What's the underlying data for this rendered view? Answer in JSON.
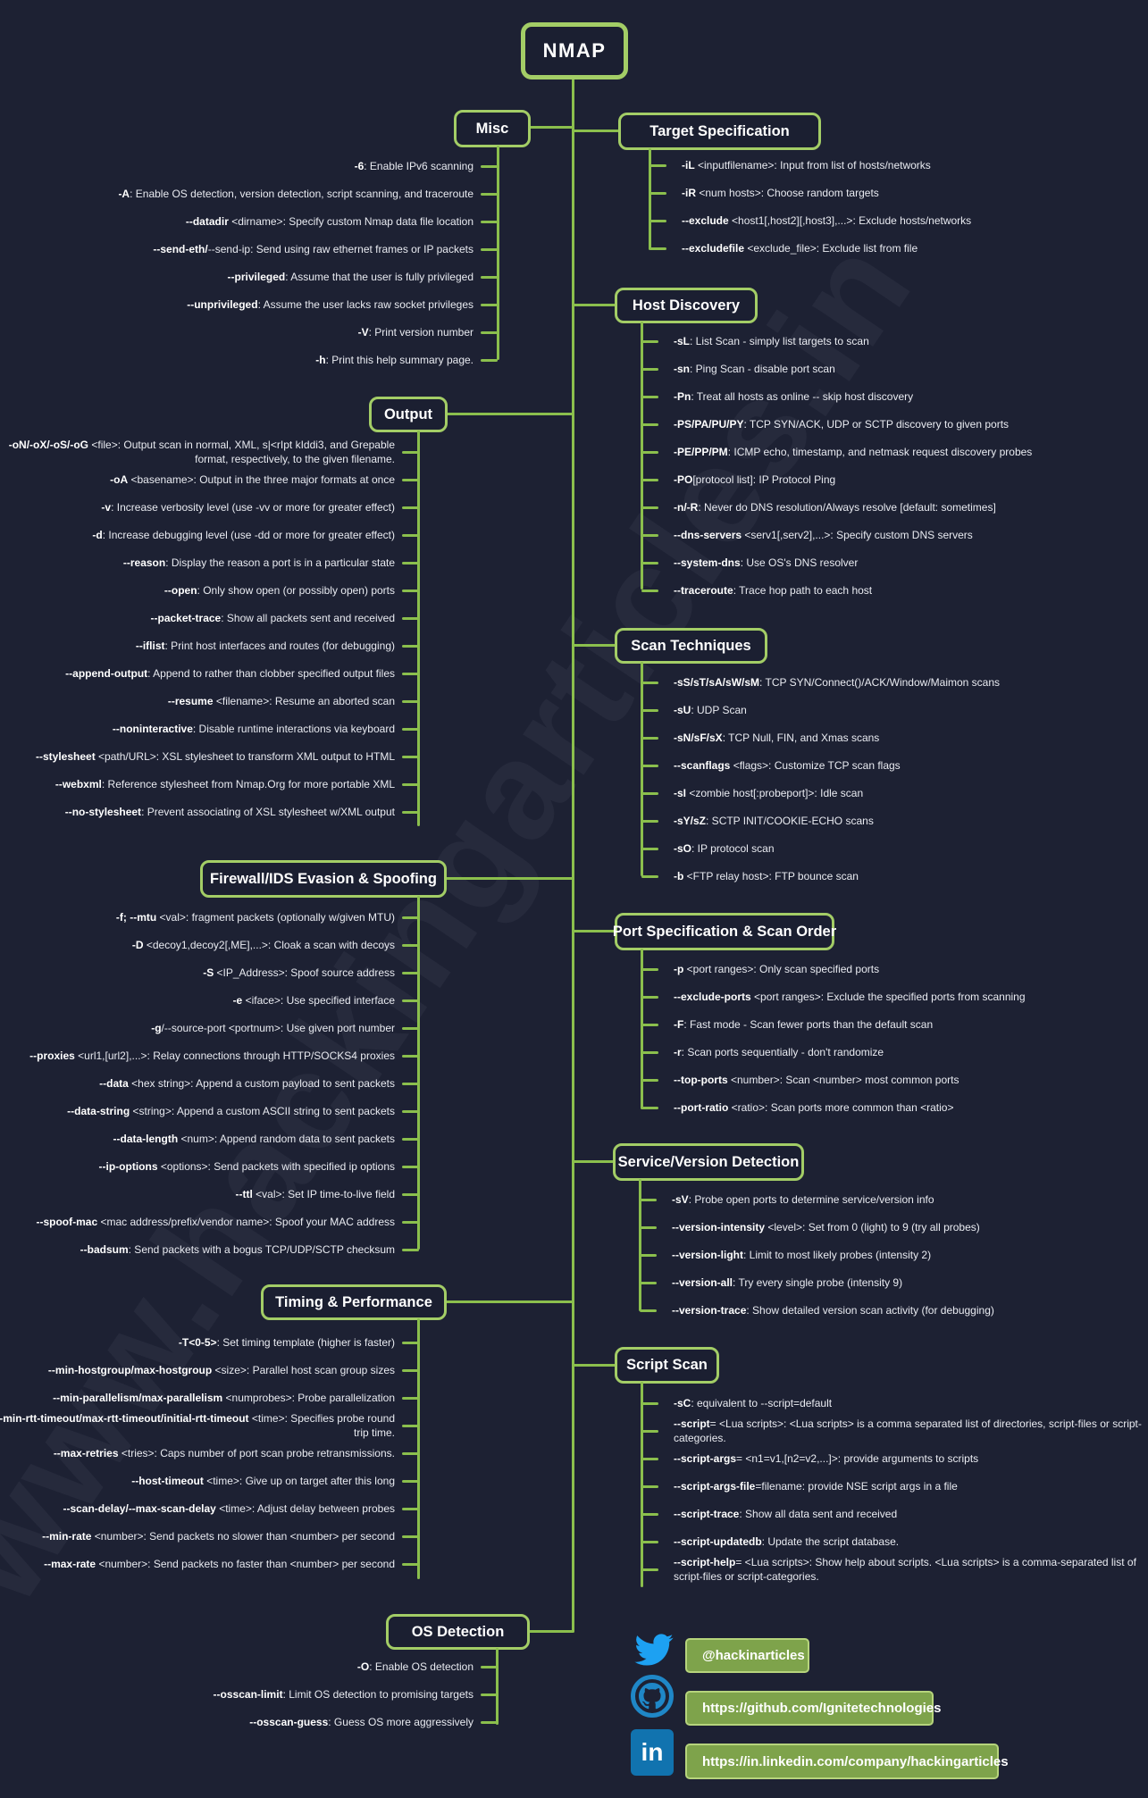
{
  "root": {
    "title": "NMAP"
  },
  "watermark": "www.hackingarticles.in",
  "colors": {
    "background": "#1d2133",
    "line_green": "#8bbf4d",
    "box_border_green": "#a3cd66",
    "badge_fill": "#7ea34b",
    "badge_border": "#b6d47c",
    "text": "#e9ebf1",
    "twitter_blue": "#1da1f2",
    "github_blue": "#1f87c7",
    "linkedin_blue": "#1173af"
  },
  "sections": [
    {
      "id": "misc",
      "title": "Misc",
      "side": "left",
      "items": [
        {
          "cmd": "-6",
          "desc": ": Enable IPv6 scanning"
        },
        {
          "cmd": "-A",
          "desc": ": Enable OS detection, version detection, script scanning, and traceroute"
        },
        {
          "cmd": "--datadir",
          "desc": " <dirname>: Specify custom Nmap data file location"
        },
        {
          "cmd": "--send-eth/",
          "desc": "--send-ip: Send using raw ethernet frames or IP packets"
        },
        {
          "cmd": "--privileged",
          "desc": ": Assume that the user is fully privileged"
        },
        {
          "cmd": "--unprivileged",
          "desc": ": Assume the user lacks raw socket privileges"
        },
        {
          "cmd": "-V",
          "desc": ": Print version number"
        },
        {
          "cmd": "-h",
          "desc": ": Print this help summary page."
        }
      ]
    },
    {
      "id": "output",
      "title": "Output",
      "side": "left",
      "items": [
        {
          "cmd": "-oN/-oX/-oS/-oG",
          "desc": " <file>: Output scan in normal, XML, s|<rIpt kIddi3, and Grepable format, respectively, to the given filename."
        },
        {
          "cmd": "-oA",
          "desc": " <basename>: Output in the three major formats at once"
        },
        {
          "cmd": "-v",
          "desc": ": Increase verbosity level (use -vv or more for greater effect)"
        },
        {
          "cmd": "-d",
          "desc": ": Increase debugging level (use -dd or more for greater effect)"
        },
        {
          "cmd": "--reason",
          "desc": ": Display the reason a port is in a particular state"
        },
        {
          "cmd": "--open",
          "desc": ": Only show open (or possibly open) ports"
        },
        {
          "cmd": "--packet-trace",
          "desc": ": Show all packets sent and received"
        },
        {
          "cmd": "--iflist",
          "desc": ": Print host interfaces and routes (for debugging)"
        },
        {
          "cmd": "--append-output",
          "desc": ": Append to rather than clobber specified output files"
        },
        {
          "cmd": "--resume",
          "desc": " <filename>: Resume an aborted scan"
        },
        {
          "cmd": "--noninteractive",
          "desc": ": Disable runtime interactions via keyboard"
        },
        {
          "cmd": "--stylesheet",
          "desc": " <path/URL>: XSL stylesheet to transform XML output to HTML"
        },
        {
          "cmd": "--webxml",
          "desc": ": Reference stylesheet from Nmap.Org for more portable XML"
        },
        {
          "cmd": "--no-stylesheet",
          "desc": ": Prevent associating of XSL stylesheet w/XML output"
        }
      ]
    },
    {
      "id": "firewall",
      "title": "Firewall/IDS Evasion & Spoofing",
      "side": "left",
      "items": [
        {
          "cmd": "-f; --mtu",
          "desc": " <val>: fragment packets (optionally w/given MTU)"
        },
        {
          "cmd": "-D",
          "desc": " <decoy1,decoy2[,ME],...>: Cloak a scan with decoys"
        },
        {
          "cmd": "-S",
          "desc": " <IP_Address>: Spoof source address"
        },
        {
          "cmd": "-e",
          "desc": " <iface>: Use specified interface"
        },
        {
          "cmd": "-g",
          "desc": "/--source-port <portnum>: Use given port number"
        },
        {
          "cmd": "--proxies",
          "desc": " <url1,[url2],...>: Relay connections through HTTP/SOCKS4 proxies"
        },
        {
          "cmd": "--data",
          "desc": " <hex string>: Append a custom payload to sent packets"
        },
        {
          "cmd": "--data-string",
          "desc": " <string>: Append a custom ASCII string to sent packets"
        },
        {
          "cmd": "--data-length",
          "desc": " <num>: Append random data to sent packets"
        },
        {
          "cmd": "--ip-options",
          "desc": " <options>: Send packets with specified ip options"
        },
        {
          "cmd": "--ttl",
          "desc": " <val>: Set IP time-to-live field"
        },
        {
          "cmd": "--spoof-mac",
          "desc": " <mac address/prefix/vendor name>: Spoof your MAC address"
        },
        {
          "cmd": "--badsum",
          "desc": ": Send packets with a bogus TCP/UDP/SCTP checksum"
        }
      ]
    },
    {
      "id": "timing",
      "title": "Timing & Performance",
      "side": "left",
      "items": [
        {
          "cmd": "-T<0-5>",
          "desc": ": Set timing template (higher is faster)"
        },
        {
          "cmd": "--min-hostgroup/max-hostgroup",
          "desc": " <size>: Parallel host scan group sizes"
        },
        {
          "cmd": "--min-parallelism/max-parallelism",
          "desc": " <numprobes>: Probe parallelization"
        },
        {
          "cmd": "--min-rtt-timeout/max-rtt-timeout/initial-rtt-timeout",
          "desc": " <time>: Specifies  probe round trip time."
        },
        {
          "cmd": "--max-retries",
          "desc": " <tries>: Caps number of port scan probe retransmissions."
        },
        {
          "cmd": "--host-timeout",
          "desc": " <time>: Give up on target after this long"
        },
        {
          "cmd": "--scan-delay/--max-scan-delay",
          "desc": " <time>: Adjust delay between probes"
        },
        {
          "cmd": "--min-rate",
          "desc": " <number>: Send packets no slower than <number> per second"
        },
        {
          "cmd": "--max-rate",
          "desc": " <number>: Send packets no faster than <number> per second"
        }
      ]
    },
    {
      "id": "os",
      "title": "OS Detection",
      "side": "left",
      "items": [
        {
          "cmd": "-O",
          "desc": ": Enable OS detection"
        },
        {
          "cmd": "--osscan-limit",
          "desc": ": Limit OS detection to promising targets"
        },
        {
          "cmd": "--osscan-guess",
          "desc": ": Guess OS more aggressively"
        }
      ]
    },
    {
      "id": "target",
      "title": "Target Specification",
      "side": "right",
      "items": [
        {
          "cmd": "-iL",
          "desc": " <inputfilename>: Input from list of hosts/networks"
        },
        {
          "cmd": "-iR",
          "desc": " <num hosts>: Choose random targets"
        },
        {
          "cmd": "--exclude",
          "desc": " <host1[,host2][,host3],...>: Exclude hosts/networks"
        },
        {
          "cmd": "--excludefile",
          "desc": " <exclude_file>: Exclude list from file"
        }
      ]
    },
    {
      "id": "host",
      "title": "Host Discovery",
      "side": "right",
      "items": [
        {
          "cmd": "-sL",
          "desc": ": List Scan - simply list targets to scan"
        },
        {
          "cmd": "-sn",
          "desc": ": Ping Scan - disable port scan"
        },
        {
          "cmd": "-Pn",
          "desc": ": Treat all hosts as online -- skip host discovery"
        },
        {
          "cmd": "-PS/PA/PU/PY",
          "desc": ": TCP SYN/ACK, UDP or SCTP discovery to given ports"
        },
        {
          "cmd": "-PE/PP/PM",
          "desc": ": ICMP echo, timestamp, and netmask request discovery probes"
        },
        {
          "cmd": "-PO",
          "desc": "[protocol list]: IP Protocol Ping"
        },
        {
          "cmd": "-n/-R",
          "desc": ": Never do DNS resolution/Always resolve [default: sometimes]"
        },
        {
          "cmd": "--dns-servers",
          "desc": " <serv1[,serv2],...>: Specify custom DNS servers"
        },
        {
          "cmd": "--system-dns",
          "desc": ": Use OS's DNS resolver"
        },
        {
          "cmd": "--traceroute",
          "desc": ": Trace hop path to each host"
        }
      ]
    },
    {
      "id": "scan",
      "title": "Scan Techniques",
      "side": "right",
      "items": [
        {
          "cmd": "-sS/sT/sA/sW/sM",
          "desc": ": TCP SYN/Connect()/ACK/Window/Maimon scans"
        },
        {
          "cmd": "-sU",
          "desc": ": UDP Scan"
        },
        {
          "cmd": "-sN/sF/sX",
          "desc": ": TCP Null, FIN, and Xmas scans"
        },
        {
          "cmd": "--scanflags",
          "desc": " <flags>: Customize TCP scan flags"
        },
        {
          "cmd": "-sI",
          "desc": " <zombie host[:probeport]>: Idle scan"
        },
        {
          "cmd": "-sY/sZ",
          "desc": ": SCTP INIT/COOKIE-ECHO scans"
        },
        {
          "cmd": "-sO",
          "desc": ": IP protocol scan"
        },
        {
          "cmd": "-b",
          "desc": " <FTP relay host>: FTP bounce scan"
        }
      ]
    },
    {
      "id": "port",
      "title": "Port Specification & Scan Order",
      "side": "right",
      "items": [
        {
          "cmd": "-p",
          "desc": " <port ranges>: Only scan specified ports"
        },
        {
          "cmd": "--exclude-ports",
          "desc": " <port ranges>: Exclude the specified ports from scanning"
        },
        {
          "cmd": "-F",
          "desc": ": Fast mode - Scan fewer ports than the default scan"
        },
        {
          "cmd": "-r",
          "desc": ": Scan ports sequentially - don't randomize"
        },
        {
          "cmd": "--top-ports",
          "desc": " <number>: Scan <number> most common ports"
        },
        {
          "cmd": "--port-ratio",
          "desc": " <ratio>: Scan ports more common than <ratio>"
        }
      ]
    },
    {
      "id": "service",
      "title": "Service/Version Detection",
      "side": "right",
      "items": [
        {
          "cmd": "-sV",
          "desc": ": Probe open ports to determine service/version info"
        },
        {
          "cmd": "--version-intensity",
          "desc": " <level>: Set from 0 (light) to 9 (try all probes)"
        },
        {
          "cmd": "--version-light",
          "desc": ": Limit to most likely probes (intensity 2)"
        },
        {
          "cmd": "--version-all",
          "desc": ": Try every single probe (intensity 9)"
        },
        {
          "cmd": "--version-trace",
          "desc": ": Show detailed version scan activity (for debugging)"
        }
      ]
    },
    {
      "id": "script",
      "title": "Script Scan",
      "side": "right",
      "items": [
        {
          "cmd": "-sC",
          "desc": ": equivalent to --script=default"
        },
        {
          "cmd": "--script",
          "desc": "= <Lua scripts>: <Lua scripts> is a comma separated list of directories, script-files or script-categories."
        },
        {
          "cmd": "--script-args",
          "desc": "= <n1=v1,[n2=v2,...]>: provide arguments to scripts"
        },
        {
          "cmd": "--script-args-file",
          "desc": "=filename: provide NSE script args in a file"
        },
        {
          "cmd": "--script-trace",
          "desc": ": Show all data sent and received"
        },
        {
          "cmd": "--script-updatedb",
          "desc": ": Update the script database."
        },
        {
          "cmd": "--script-help",
          "desc": "= <Lua scripts>: Show help about scripts. <Lua scripts> is a comma-separated list of script-files or  script-categories."
        }
      ]
    }
  ],
  "social": [
    {
      "icon": "twitter-icon",
      "label": "@hackinarticles"
    },
    {
      "icon": "github-icon",
      "label": "https://github.com/Ignitetechnologies"
    },
    {
      "icon": "linkedin-icon",
      "label": "https://in.linkedin.com/company/hackingarticles",
      "icon_text": "in"
    }
  ]
}
